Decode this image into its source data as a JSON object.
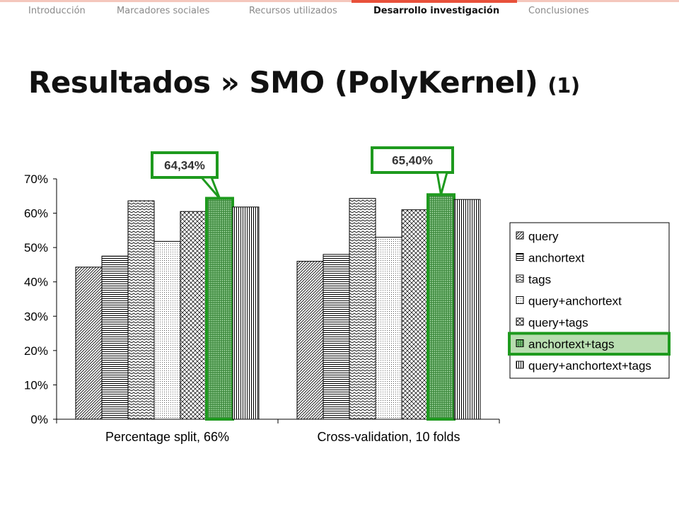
{
  "nav": {
    "items": [
      {
        "label": "Introducción",
        "active": false
      },
      {
        "label": "Marcadores sociales",
        "active": false
      },
      {
        "label": "Recursos utilizados",
        "active": false
      },
      {
        "label": "Desarrollo investigación",
        "active": true
      },
      {
        "label": "Conclusiones",
        "active": false
      }
    ]
  },
  "slide": {
    "title": "Resultados » SMO (PolyKernel)",
    "title_suffix": "(1)"
  },
  "colors": {
    "accent": "#e8503a",
    "highlight": "#1e9a1e",
    "highlight_fill": "#5aaa5a",
    "legend_highlight_bg": "#b8ddb0"
  },
  "chart_data": {
    "type": "bar",
    "categories": [
      "Percentage split, 66%",
      "Cross-validation, 10 folds"
    ],
    "series": [
      {
        "name": "query",
        "values": [
          44.3,
          46.0
        ],
        "pattern": "diagonal"
      },
      {
        "name": "anchortext",
        "values": [
          47.5,
          48.0
        ],
        "pattern": "horizontal"
      },
      {
        "name": "tags",
        "values": [
          63.6,
          64.3
        ],
        "pattern": "zigzag"
      },
      {
        "name": "query+anchortext",
        "values": [
          51.8,
          53.0
        ],
        "pattern": "dots"
      },
      {
        "name": "query+tags",
        "values": [
          60.5,
          61.0
        ],
        "pattern": "crosshatch"
      },
      {
        "name": "anchortext+tags",
        "values": [
          64.34,
          65.4
        ],
        "pattern": "dense-dots",
        "highlighted": true
      },
      {
        "name": "query+anchortext+tags",
        "values": [
          61.8,
          64.0
        ],
        "pattern": "vertical"
      }
    ],
    "yticks": [
      "0%",
      "10%",
      "20%",
      "30%",
      "40%",
      "50%",
      "60%",
      "70%"
    ],
    "ylim": [
      0,
      70
    ],
    "grid": false,
    "legend_position": "right",
    "callouts": [
      "64,34%",
      "65,40%"
    ]
  }
}
